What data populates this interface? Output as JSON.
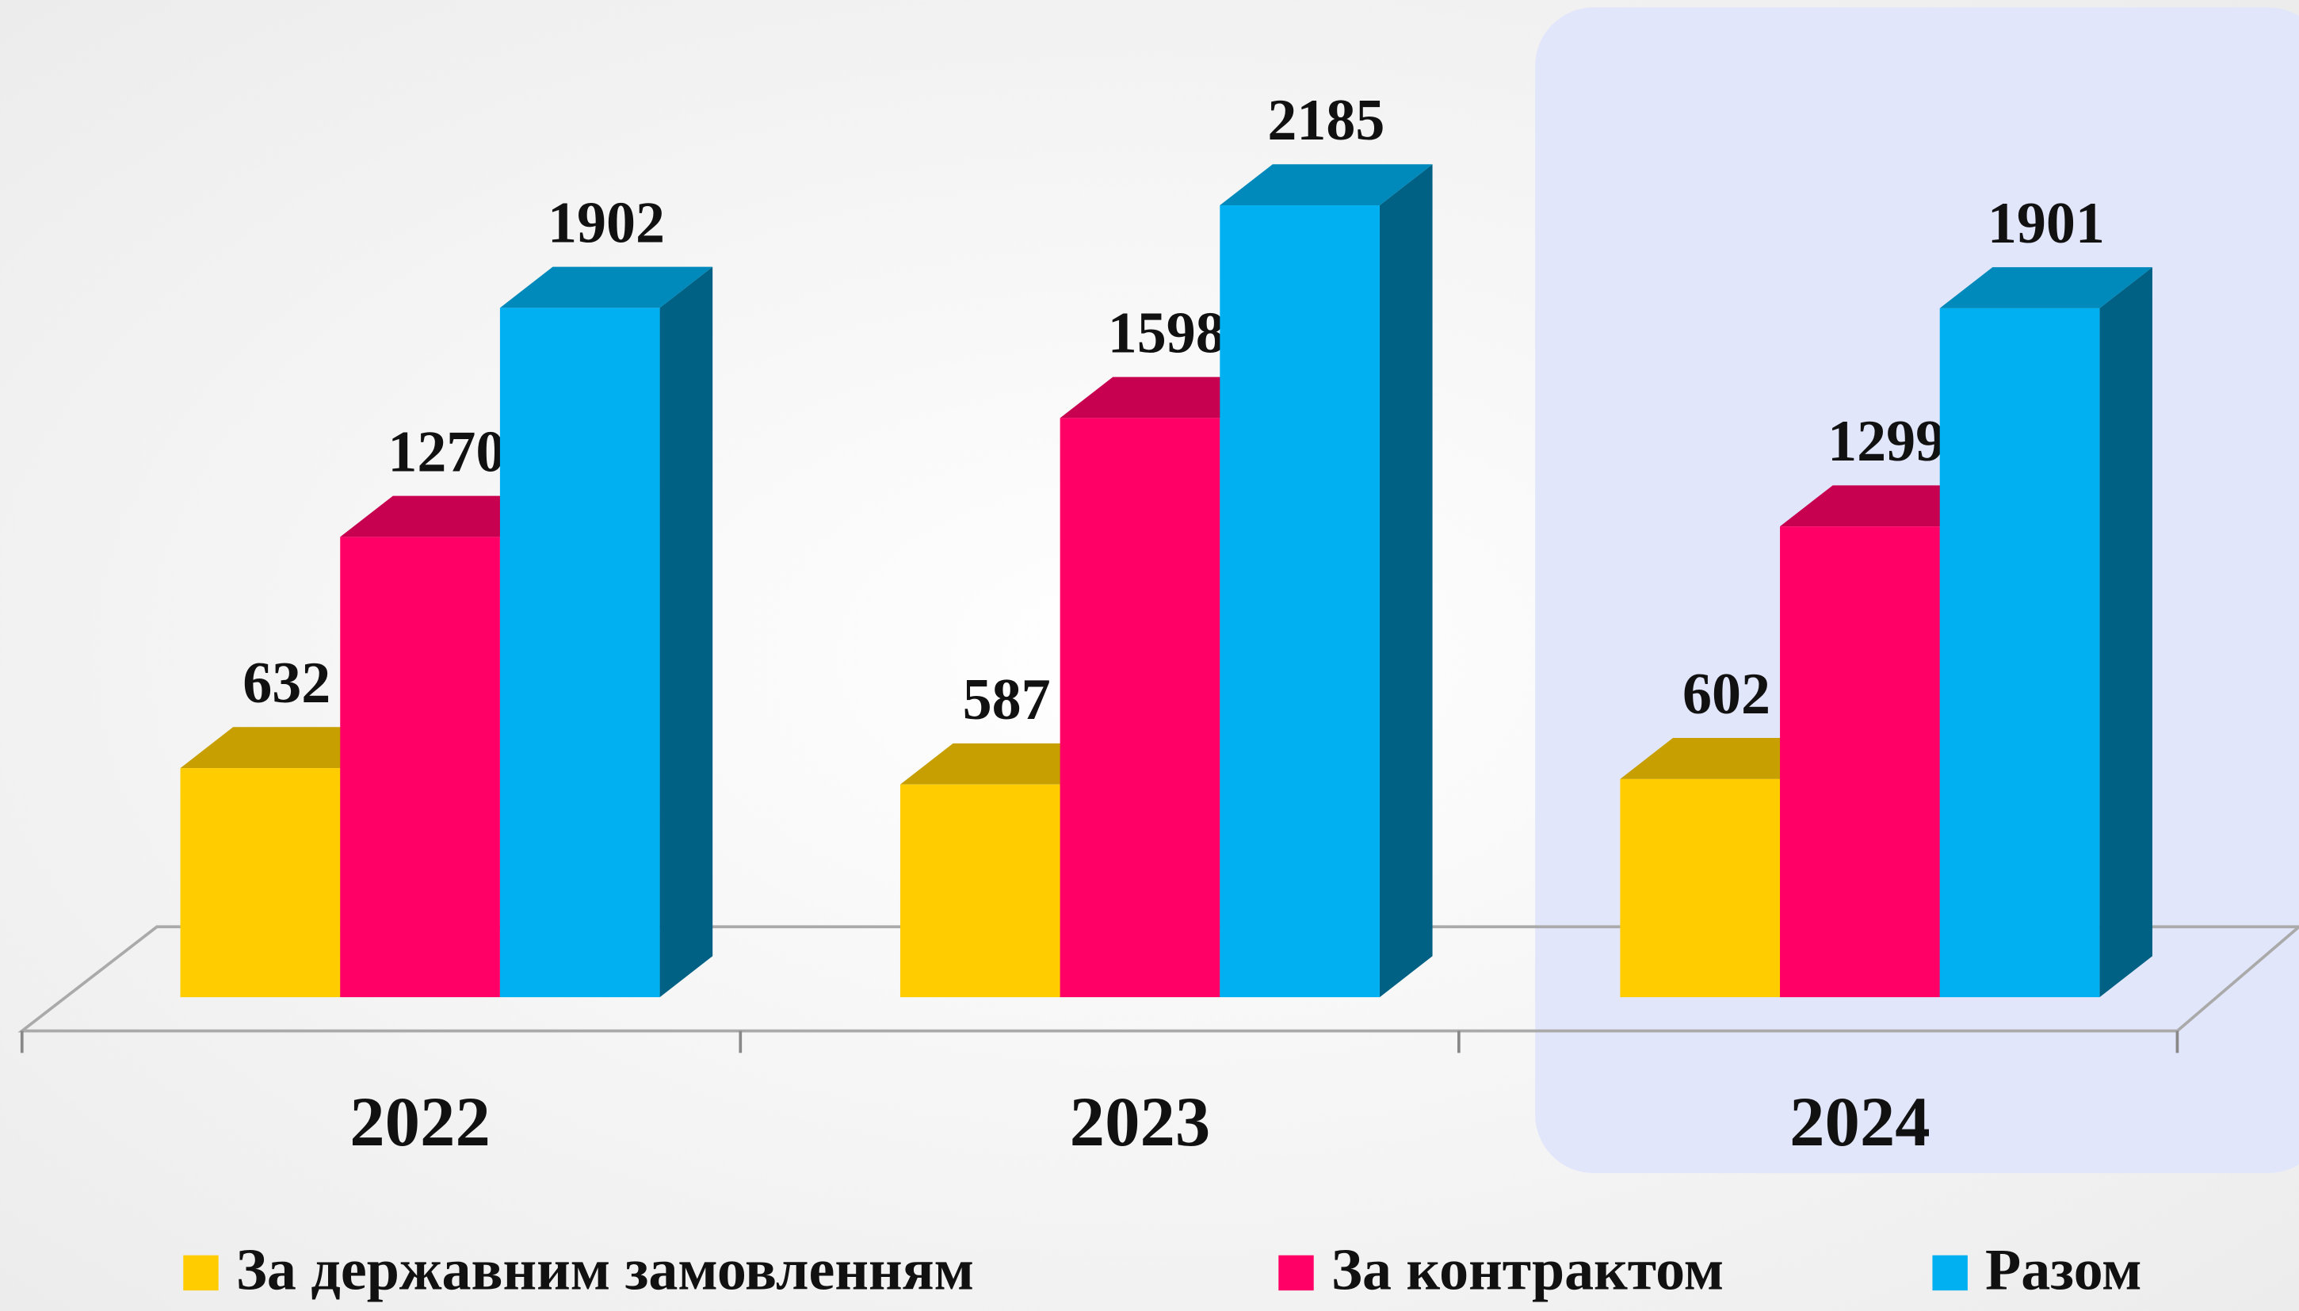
{
  "chart_data": {
    "type": "bar3d",
    "categories": [
      "2022",
      "2023",
      "2024"
    ],
    "series": [
      {
        "name": "За державним замовленням",
        "color": "#ffcc00",
        "values": [
          632,
          587,
          602
        ]
      },
      {
        "name": "За контрактом",
        "color": "#ff0066",
        "values": [
          1270,
          1598,
          1299
        ]
      },
      {
        "name": "Разом",
        "color": "#00b0f0",
        "values": [
          1902,
          2185,
          1901
        ]
      }
    ],
    "legend": "bottom"
  }
}
